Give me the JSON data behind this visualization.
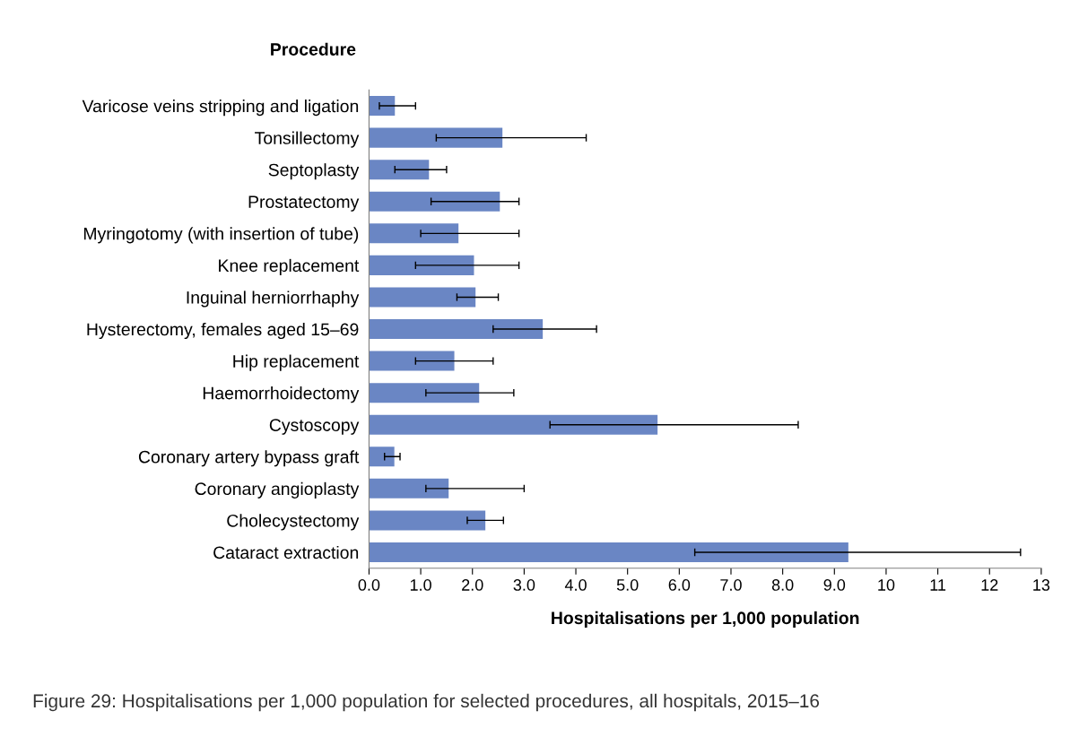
{
  "chart_data": {
    "type": "bar",
    "orientation": "horizontal",
    "ylabel": "Procedure",
    "xlabel": "Hospitalisations per 1,000 population",
    "annotations": [
      "Figure 29: Hospitalisations per 1,000 population for selected procedures, all hospitals, 2015–16"
    ],
    "categories": [
      "Varicose veins stripping and ligation",
      "Tonsillectomy",
      "Septoplasty",
      "Prostatectomy",
      "Myringotomy (with insertion of tube)",
      "Knee replacement",
      "Inguinal herniorrhaphy",
      "Hysterectomy, females aged 15–69",
      "Hip replacement",
      "Haemorrhoidectomy",
      "Cystoscopy",
      "Coronary artery bypass graft",
      "Coronary angioplasty",
      "Cholecystectomy",
      "Cataract extraction"
    ],
    "values": [
      0.5,
      2.58,
      1.16,
      2.53,
      1.73,
      2.03,
      2.06,
      3.36,
      1.65,
      2.13,
      5.58,
      0.49,
      1.54,
      2.25,
      9.27
    ],
    "errors": [
      [
        0.2,
        0.9
      ],
      [
        1.3,
        4.2
      ],
      [
        0.5,
        1.5
      ],
      [
        1.2,
        2.9
      ],
      [
        1.0,
        2.9
      ],
      [
        0.9,
        2.9
      ],
      [
        1.7,
        2.5
      ],
      [
        2.4,
        4.4
      ],
      [
        0.9,
        2.4
      ],
      [
        1.1,
        2.8
      ],
      [
        3.5,
        8.3
      ],
      [
        0.3,
        0.6
      ],
      [
        1.1,
        3.0
      ],
      [
        1.9,
        2.6
      ],
      [
        6.3,
        12.6
      ]
    ],
    "color": "#6a86c4",
    "xlim": [
      0,
      13
    ],
    "xticks": [
      {
        "value": 0,
        "label": "0.0"
      },
      {
        "value": 1,
        "label": "1.0"
      },
      {
        "value": 2,
        "label": "2.0"
      },
      {
        "value": 3,
        "label": "3.0"
      },
      {
        "value": 4,
        "label": "4.0"
      },
      {
        "value": 5,
        "label": "5.0"
      },
      {
        "value": 6,
        "label": "6.0"
      },
      {
        "value": 7,
        "label": "7.0"
      },
      {
        "value": 8,
        "label": "8.0"
      },
      {
        "value": 9,
        "label": "9.0"
      },
      10,
      11,
      12,
      13
    ],
    "grid": false,
    "legend": false
  }
}
